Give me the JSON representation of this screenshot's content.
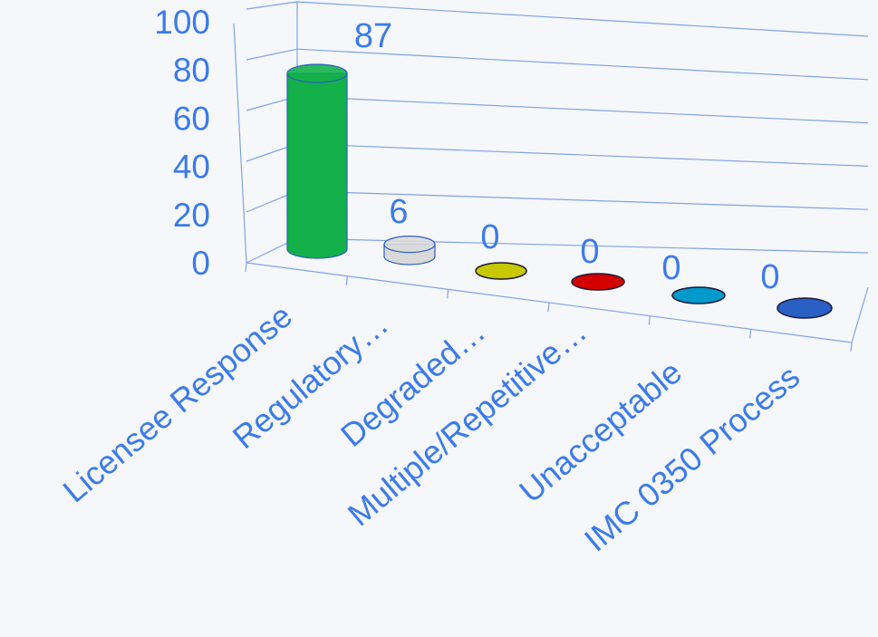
{
  "chart_data": {
    "type": "bar",
    "style": "3d-cylinder",
    "categories": [
      "Licensee Response",
      "Regulatory…",
      "Degraded…",
      "Multiple/Repetitive…",
      "Unacceptable",
      "IMC 0350 Process"
    ],
    "values": [
      87,
      6,
      0,
      0,
      0,
      0
    ],
    "data_labels": [
      "87",
      "6",
      "0",
      "0",
      "0",
      "0"
    ],
    "ylim": [
      0,
      100
    ],
    "yticks": [
      "0",
      "20",
      "40",
      "60",
      "80",
      "100"
    ],
    "grid": true,
    "legend": "none",
    "colors": {
      "bars": [
        "#14b04a",
        "#d9d9d9",
        "#c8c800",
        "#d40000",
        "#0099cc",
        "#2a5fc4"
      ],
      "text": "#3b7be8",
      "grid": "#7fa3e6",
      "background": "#f5f7fa"
    }
  }
}
